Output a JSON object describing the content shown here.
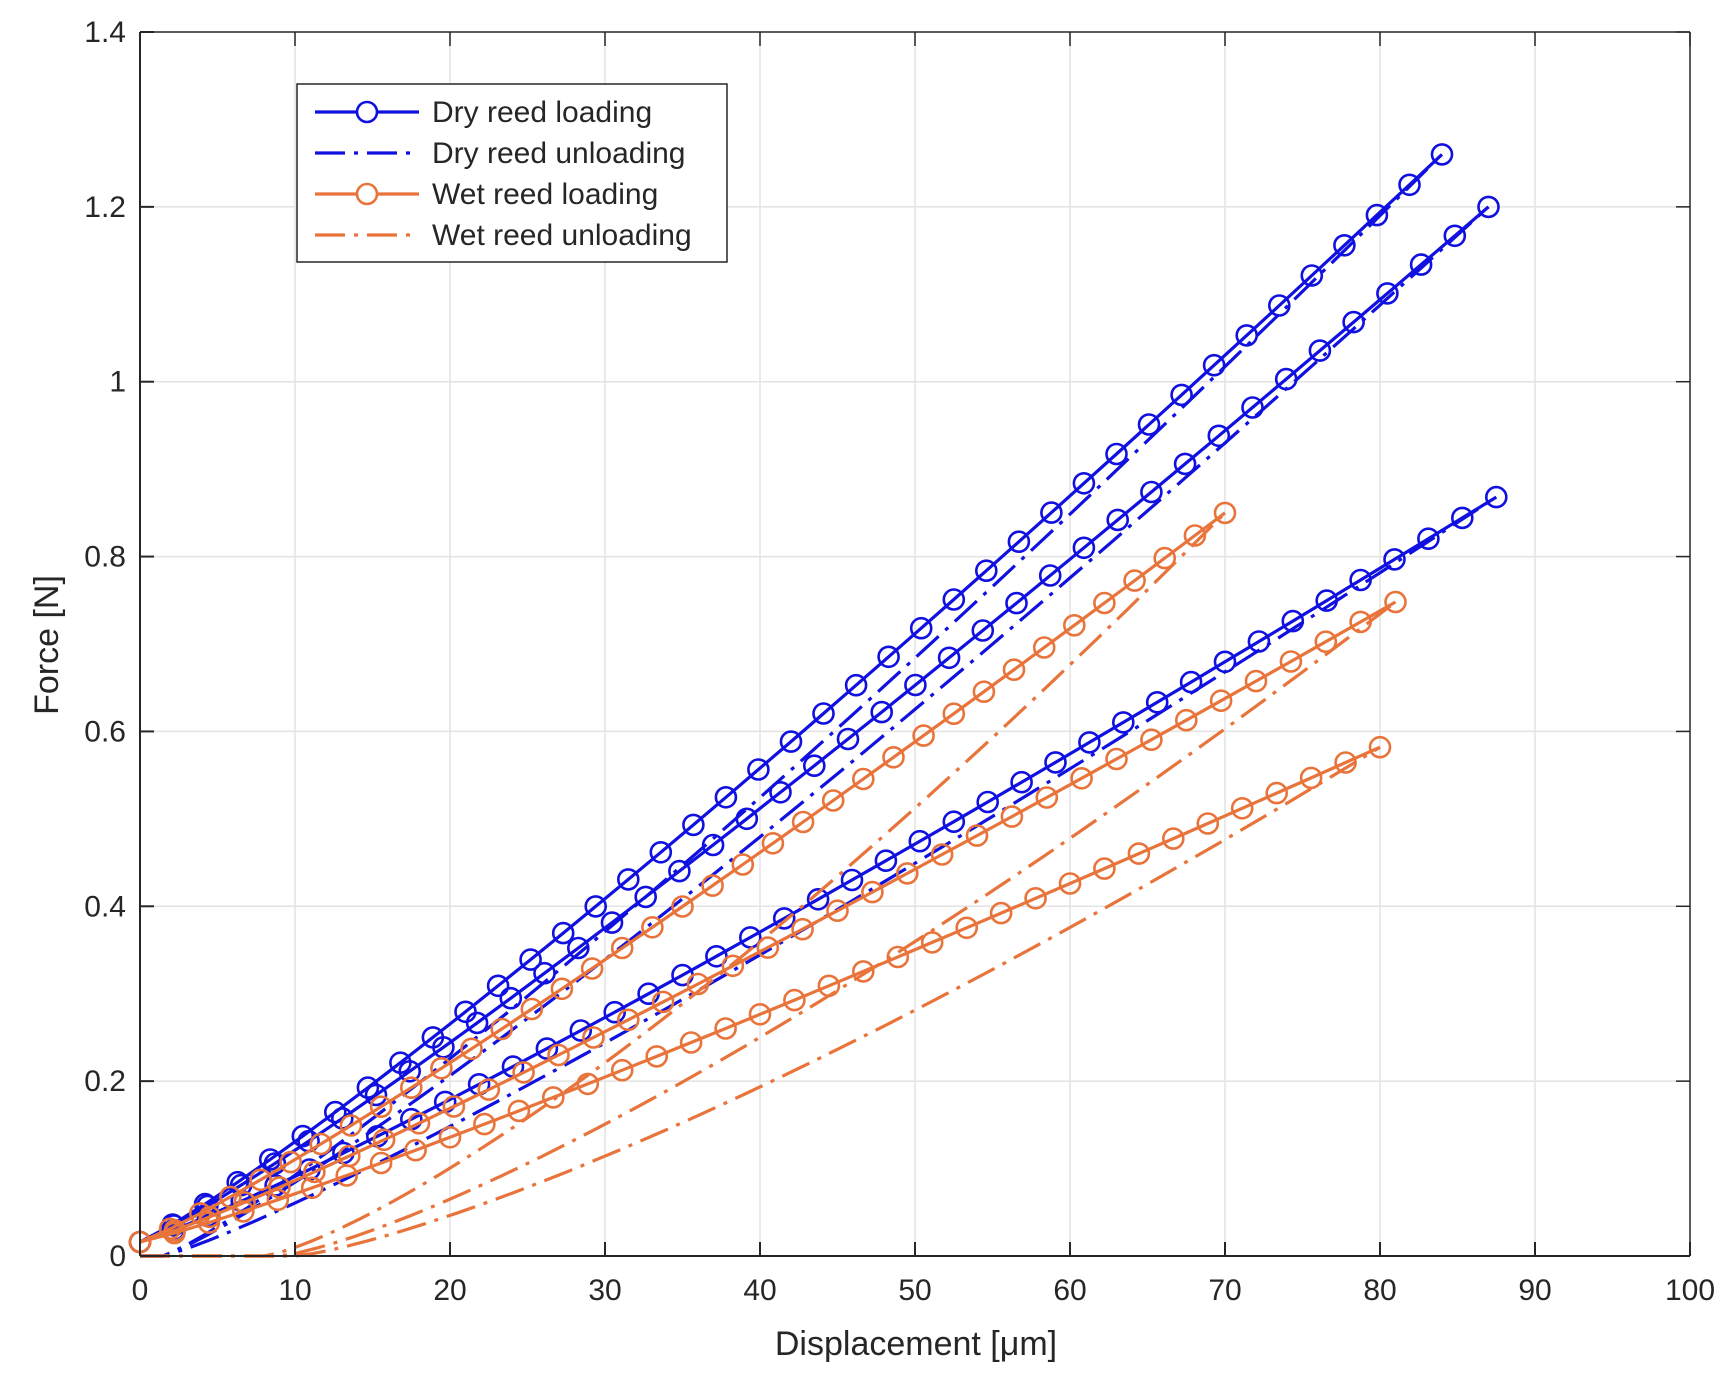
{
  "chart_data": {
    "type": "line",
    "title": "",
    "xlabel": "Displacement [μm]",
    "ylabel": "Force [N]",
    "xlim": [
      0,
      100
    ],
    "ylim": [
      0,
      1.4
    ],
    "xticks": [
      0,
      10,
      20,
      30,
      40,
      50,
      60,
      70,
      80,
      90,
      100
    ],
    "yticks": [
      0,
      0.2,
      0.4,
      0.6,
      0.8,
      1,
      1.2,
      1.4
    ],
    "xtick_labels": [
      "0",
      "10",
      "20",
      "30",
      "40",
      "50",
      "60",
      "70",
      "80",
      "90",
      "100"
    ],
    "ytick_labels": [
      "0",
      "0.2",
      "0.4",
      "0.6",
      "0.8",
      "1",
      "1.2",
      "1.4"
    ],
    "grid": true,
    "legend_position": "top-left",
    "colors": {
      "dry": "#1010e0",
      "wet": "#e8743b",
      "grid": "#e3e3e3",
      "axis": "#262626"
    },
    "legend": [
      {
        "label": "Dry reed loading",
        "group": "dry",
        "style": "solid-marker"
      },
      {
        "label": "Dry reed unloading",
        "group": "dry",
        "style": "dashdot"
      },
      {
        "label": "Wet reed loading",
        "group": "wet",
        "style": "solid-marker"
      },
      {
        "label": "Wet reed unloading",
        "group": "wet",
        "style": "dashdot"
      }
    ],
    "series": [
      {
        "name": "Dry reed loading",
        "group": "dry",
        "style": "solid-marker",
        "x_max": 84,
        "y_max": 1.26,
        "p": 1.12,
        "n": 40
      },
      {
        "name": "Dry reed loading",
        "group": "dry",
        "style": "solid-marker",
        "x_max": 87,
        "y_max": 1.2,
        "p": 1.12,
        "n": 40
      },
      {
        "name": "Dry reed loading",
        "group": "dry",
        "style": "solid-marker",
        "x_max": 87.5,
        "y_max": 0.868,
        "p": 1.12,
        "n": 40
      },
      {
        "name": "Dry reed unloading",
        "group": "dry",
        "style": "dashdot",
        "x_max": 84,
        "y_max": 1.26,
        "x0": 1.5,
        "p": 1.15
      },
      {
        "name": "Dry reed unloading",
        "group": "dry",
        "style": "dashdot",
        "x_max": 87,
        "y_max": 1.2,
        "x0": 1.5,
        "p": 1.15
      },
      {
        "name": "Dry reed unloading",
        "group": "dry",
        "style": "dashdot",
        "x_max": 87.5,
        "y_max": 0.868,
        "x0": 1.5,
        "p": 1.15
      },
      {
        "name": "Wet reed loading",
        "group": "wet",
        "style": "solid-marker",
        "x_max": 70,
        "y_max": 0.85,
        "p": 1.12,
        "n": 36
      },
      {
        "name": "Wet reed loading",
        "group": "wet",
        "style": "solid-marker",
        "x_max": 81,
        "y_max": 0.748,
        "p": 1.12,
        "n": 36
      },
      {
        "name": "Wet reed loading",
        "group": "wet",
        "style": "solid-marker",
        "x_max": 80,
        "y_max": 0.582,
        "p": 1.12,
        "n": 36
      },
      {
        "name": "Wet reed unloading",
        "group": "wet",
        "style": "dashdot",
        "x_max": 70,
        "y_max": 0.85,
        "x0": 8,
        "p": 1.3
      },
      {
        "name": "Wet reed unloading",
        "group": "wet",
        "style": "dashdot",
        "x_max": 81,
        "y_max": 0.748,
        "x0": 9,
        "p": 1.3
      },
      {
        "name": "Wet reed unloading",
        "group": "wet",
        "style": "dashdot",
        "x_max": 80,
        "y_max": 0.582,
        "x0": 10,
        "p": 1.3
      }
    ]
  }
}
